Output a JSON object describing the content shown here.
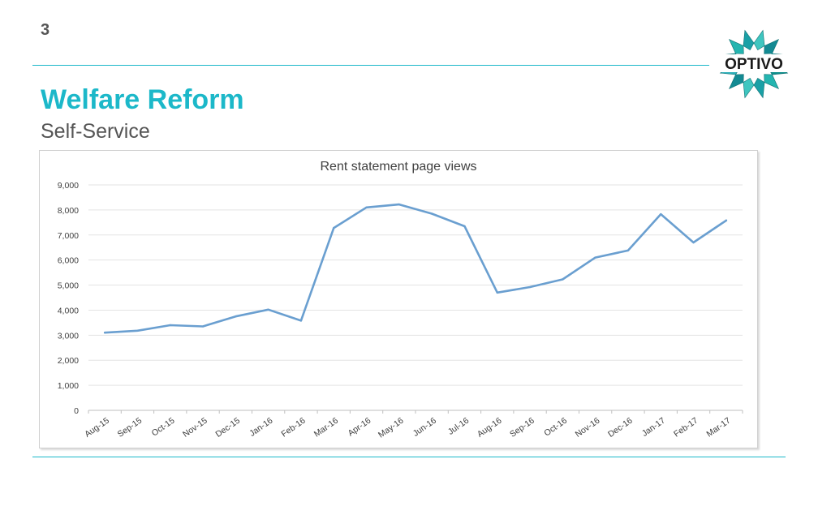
{
  "slide": {
    "number": "3",
    "title": "Welfare Reform",
    "subtitle": "Self-Service",
    "logo_text": "OPTIVO"
  },
  "colors": {
    "accent": "#1cb8c9",
    "line": "#6a9fd0",
    "logo_teal": "#1aa8a6"
  },
  "chart_data": {
    "type": "line",
    "title": "Rent statement page views",
    "xlabel": "",
    "ylabel": "",
    "ylim": [
      0,
      9000
    ],
    "yticks": [
      0,
      1000,
      2000,
      3000,
      4000,
      5000,
      6000,
      7000,
      8000,
      9000
    ],
    "ytick_labels": [
      "0",
      "1,000",
      "2,000",
      "3,000",
      "4,000",
      "5,000",
      "6,000",
      "7,000",
      "8,000",
      "9,000"
    ],
    "grid": true,
    "legend": "none",
    "categories": [
      "Aug-15",
      "Sep-15",
      "Oct-15",
      "Nov-15",
      "Dec-15",
      "Jan-16",
      "Feb-16",
      "Mar-16",
      "Apr-16",
      "May-16",
      "Jun-16",
      "Jul-16",
      "Aug-16",
      "Sep-16",
      "Oct-16",
      "Nov-16",
      "Dec-16",
      "Jan-17",
      "Feb-17",
      "Mar-17"
    ],
    "series": [
      {
        "values": [
          3100,
          3180,
          3400,
          3350,
          3750,
          4020,
          3580,
          7280,
          8100,
          8220,
          7850,
          7350,
          4700,
          4920,
          5230,
          6100,
          6380,
          7830,
          6700,
          7580
        ]
      }
    ]
  }
}
